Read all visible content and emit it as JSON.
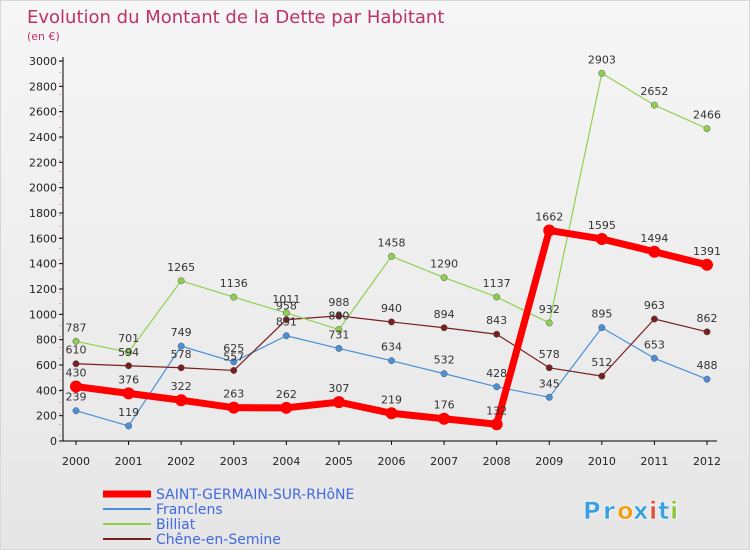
{
  "chart_data": {
    "type": "line",
    "title": "Evolution du Montant de la Dette par Habitant",
    "subtitle": "(en €)",
    "x": [
      "2000",
      "2001",
      "2002",
      "2003",
      "2004",
      "2005",
      "2006",
      "2007",
      "2008",
      "2009",
      "2010",
      "2011",
      "2012"
    ],
    "ylim": [
      0,
      3000
    ],
    "yticks": [
      0,
      200,
      400,
      600,
      800,
      1000,
      1200,
      1400,
      1600,
      1800,
      2000,
      2200,
      2400,
      2600,
      2800,
      3000
    ],
    "grid": false,
    "legend_position": "bottom-left",
    "series": [
      {
        "name": "SAINT-GERMAIN-SUR-RHôNE",
        "color": "#ff0000",
        "values": [
          430,
          376,
          322,
          263,
          262,
          307,
          219,
          176,
          132,
          1662,
          1595,
          1494,
          1391
        ]
      },
      {
        "name": "Franclens",
        "color": "#4a90d9",
        "values": [
          239,
          119,
          749,
          625,
          831,
          731,
          634,
          532,
          428,
          345,
          895,
          653,
          488
        ]
      },
      {
        "name": "Billiat",
        "color": "#90d050",
        "values": [
          787,
          701,
          1265,
          1136,
          1011,
          880,
          1458,
          1290,
          1137,
          932,
          2903,
          2652,
          2466
        ]
      },
      {
        "name": "Chêne-en-Semine",
        "color": "#7a1f1f",
        "values": [
          610,
          594,
          578,
          557,
          958,
          988,
          940,
          894,
          843,
          578,
          512,
          963,
          862
        ]
      }
    ]
  },
  "logo": {
    "text": "Proxiti",
    "letters": [
      "P",
      "r",
      "o",
      "x",
      "i",
      "t",
      "i"
    ],
    "colors": [
      "#3aa0e0",
      "#3aa0e0",
      "#f39c12",
      "#3aa0e0",
      "#e74c3c",
      "#3aa0e0",
      "#8cc63f"
    ]
  }
}
